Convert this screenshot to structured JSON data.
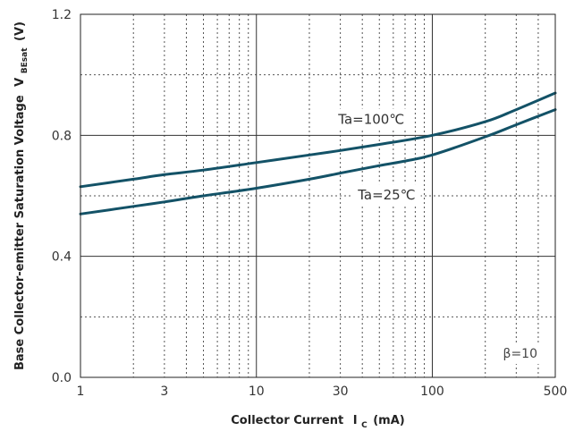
{
  "chart_data": {
    "type": "line",
    "x_scale": "log",
    "xlim": [
      1,
      500
    ],
    "ylim": [
      0.0,
      1.2
    ],
    "x_ticks": [
      1,
      3,
      10,
      30,
      100,
      500
    ],
    "x_tick_labels": [
      "1",
      "3",
      "10",
      "30",
      "100",
      "500"
    ],
    "y_ticks": [
      0.0,
      0.4,
      0.8,
      1.2
    ],
    "y_tick_labels": [
      "0.0",
      "0.4",
      "0.8",
      "1.2"
    ],
    "grid": true,
    "xlabel_main": "Collector Current",
    "xlabel_symbol": "I",
    "xlabel_sub": "C",
    "xlabel_unit": "(mA)",
    "ylabel_main": "Base Collector-emitter Saturation Voltage",
    "ylabel_symbol": "V",
    "ylabel_sub": "BEsat",
    "ylabel_unit": "(V)",
    "annotation": "β=10",
    "series": [
      {
        "name": "Ta=100℃",
        "color": "#135267",
        "x": [
          1,
          2,
          3,
          5,
          10,
          20,
          30,
          50,
          100,
          200,
          300,
          500
        ],
        "y": [
          0.63,
          0.655,
          0.67,
          0.685,
          0.71,
          0.735,
          0.75,
          0.77,
          0.8,
          0.845,
          0.885,
          0.94
        ]
      },
      {
        "name": "Ta=25℃",
        "color": "#135267",
        "x": [
          1,
          2,
          3,
          5,
          10,
          20,
          30,
          50,
          70,
          100,
          200,
          300,
          500
        ],
        "y": [
          0.54,
          0.565,
          0.58,
          0.6,
          0.625,
          0.655,
          0.675,
          0.7,
          0.715,
          0.735,
          0.795,
          0.835,
          0.885
        ]
      }
    ]
  }
}
